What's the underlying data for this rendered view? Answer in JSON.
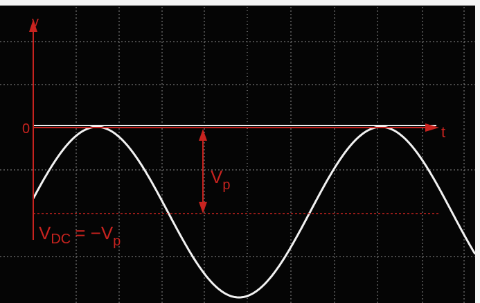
{
  "labels": {
    "v_axis": "v",
    "origin": "0",
    "t_axis": "t",
    "vp": {
      "main": "V",
      "sub": "p"
    },
    "vdc": {
      "main": "V",
      "sub": "DC",
      "equals": "= −V",
      "sub2": "p"
    }
  }
}
